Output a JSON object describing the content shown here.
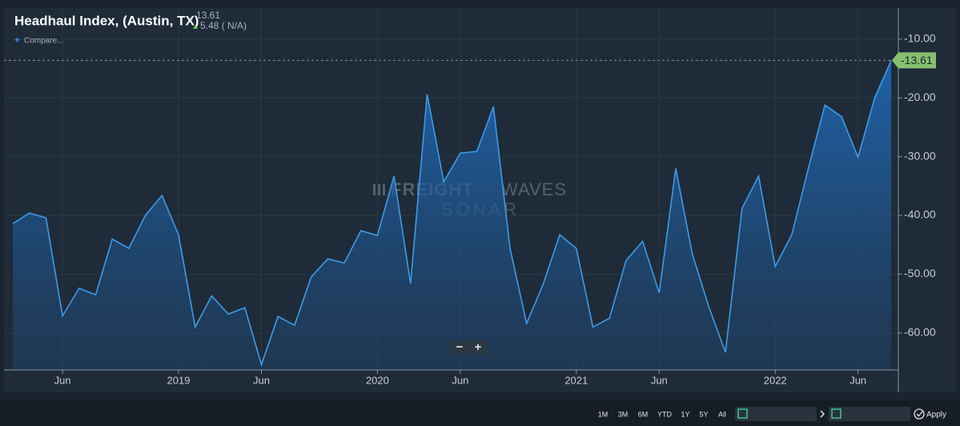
{
  "chart_data": {
    "type": "line",
    "title": "Headhaul Index, (Austin, TX)",
    "change_label": "5.48 ( N/A)",
    "compare_label": "Compare...",
    "categories": [
      null,
      null,
      null,
      "Jun",
      null,
      null,
      null,
      null,
      null,
      null,
      "2019",
      null,
      null,
      null,
      null,
      "Jun",
      null,
      null,
      null,
      null,
      null,
      null,
      "2020",
      null,
      null,
      null,
      null,
      "Jun",
      null,
      null,
      null,
      null,
      null,
      null,
      "2021",
      null,
      null,
      null,
      null,
      "Jun",
      null,
      null,
      null,
      null,
      null,
      null,
      "2022",
      null,
      null,
      null,
      null,
      "Jun",
      null,
      null
    ],
    "values": [
      -41.4,
      -39.6,
      -40.4,
      -57.1,
      -52.4,
      -53.5,
      -44.0,
      -45.6,
      -40.0,
      -36.6,
      -43.3,
      -59.0,
      -53.7,
      -56.8,
      -55.7,
      -65.4,
      -57.2,
      -58.7,
      -50.5,
      -47.4,
      -48.1,
      -42.6,
      -43.4,
      -33.3,
      -51.6,
      -19.4,
      -34.3,
      -29.4,
      -29.1,
      -21.5,
      -45.6,
      -58.4,
      -51.7,
      -43.3,
      -45.6,
      -59.0,
      -57.5,
      -47.7,
      -44.4,
      -53.2,
      -32.0,
      -46.6,
      -55.6,
      -63.3,
      -38.8,
      -33.3,
      -48.7,
      -43.3,
      -32.0,
      -21.2,
      -23.2,
      -30.1,
      -20.0,
      -13.61
    ],
    "color": "#3d9be9",
    "ylim": [
      -66.3,
      -4.7
    ],
    "yticks": [
      {
        "value": -60,
        "label": "-60.00"
      },
      {
        "value": -50,
        "label": "-50.00"
      },
      {
        "value": -40,
        "label": "-40.00"
      },
      {
        "value": -30,
        "label": "-30.00"
      },
      {
        "value": -20,
        "label": "-20.00"
      },
      {
        "value": -10,
        "label": "-10.00"
      }
    ],
    "grid": true
  },
  "watermark": {
    "brand_bold": "FREIGHT",
    "brand_light": "WAVES",
    "product": "SONAR"
  },
  "zoom_controls": [
    "−",
    "+"
  ],
  "toolbar": {
    "ranges": [
      "1M",
      "3M",
      "6M",
      "YTD",
      "1Y",
      "5Y",
      "All"
    ],
    "apply": "Apply"
  }
}
